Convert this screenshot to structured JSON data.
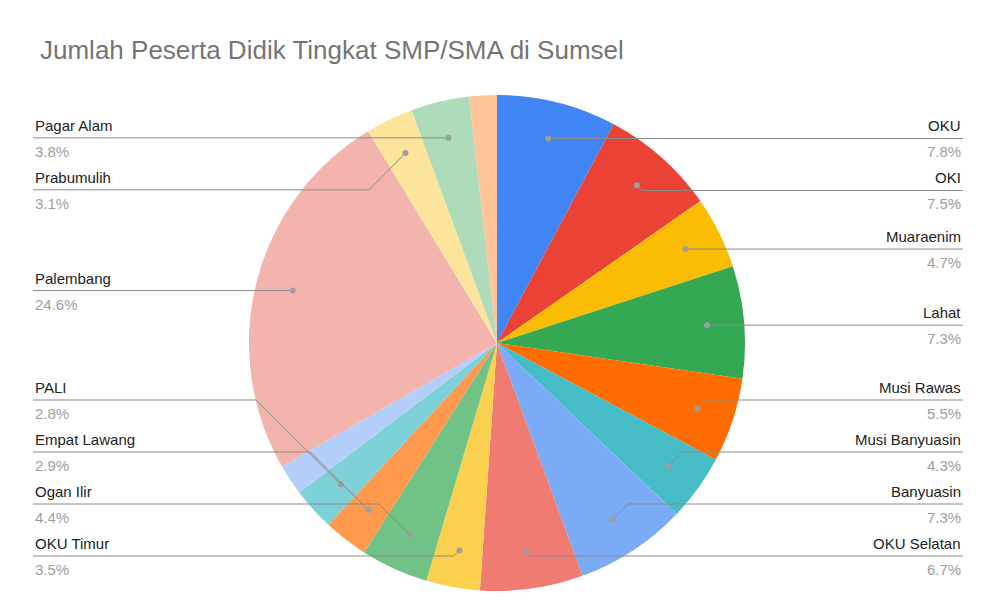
{
  "chart_data": {
    "type": "pie",
    "title": "Jumlah Peserta Didik Tingkat SMP/SMA di Sumsel",
    "categories": [
      "OKU",
      "OKI",
      "Muaraenim",
      "Lahat",
      "Musi Rawas",
      "Musi Banyuasin",
      "Banyuasin",
      "OKU Selatan",
      "OKU Timur",
      "Ogan Ilir",
      "Empat Lawang",
      "PALI",
      null,
      "Palembang",
      "Prabumulih",
      "Pagar Alam",
      null
    ],
    "values": [
      7.8,
      7.5,
      4.7,
      7.3,
      5.5,
      4.3,
      7.3,
      6.7,
      3.5,
      4.4,
      2.9,
      2.8,
      2.0,
      24.6,
      3.1,
      3.8,
      1.8
    ],
    "value_labels": [
      "7.8%",
      "7.5%",
      "4.7%",
      "7.3%",
      "5.5%",
      "4.3%",
      "7.3%",
      "6.7%",
      "3.5%",
      "4.4%",
      "2.9%",
      "2.8%",
      null,
      "24.6%",
      "3.1%",
      "3.8%",
      null
    ],
    "colors": [
      "#4285f4",
      "#ea4335",
      "#fbbc04",
      "#34a853",
      "#ff6d01",
      "#46bdc6",
      "#7baaf7",
      "#f07b72",
      "#fcd04f",
      "#71c287",
      "#ff994d",
      "#7ed1d7",
      "#b3cefb",
      "#f4b4ae",
      "#fde49b",
      "#aedcba",
      "#ffc599"
    ],
    "data_labels": true
  }
}
